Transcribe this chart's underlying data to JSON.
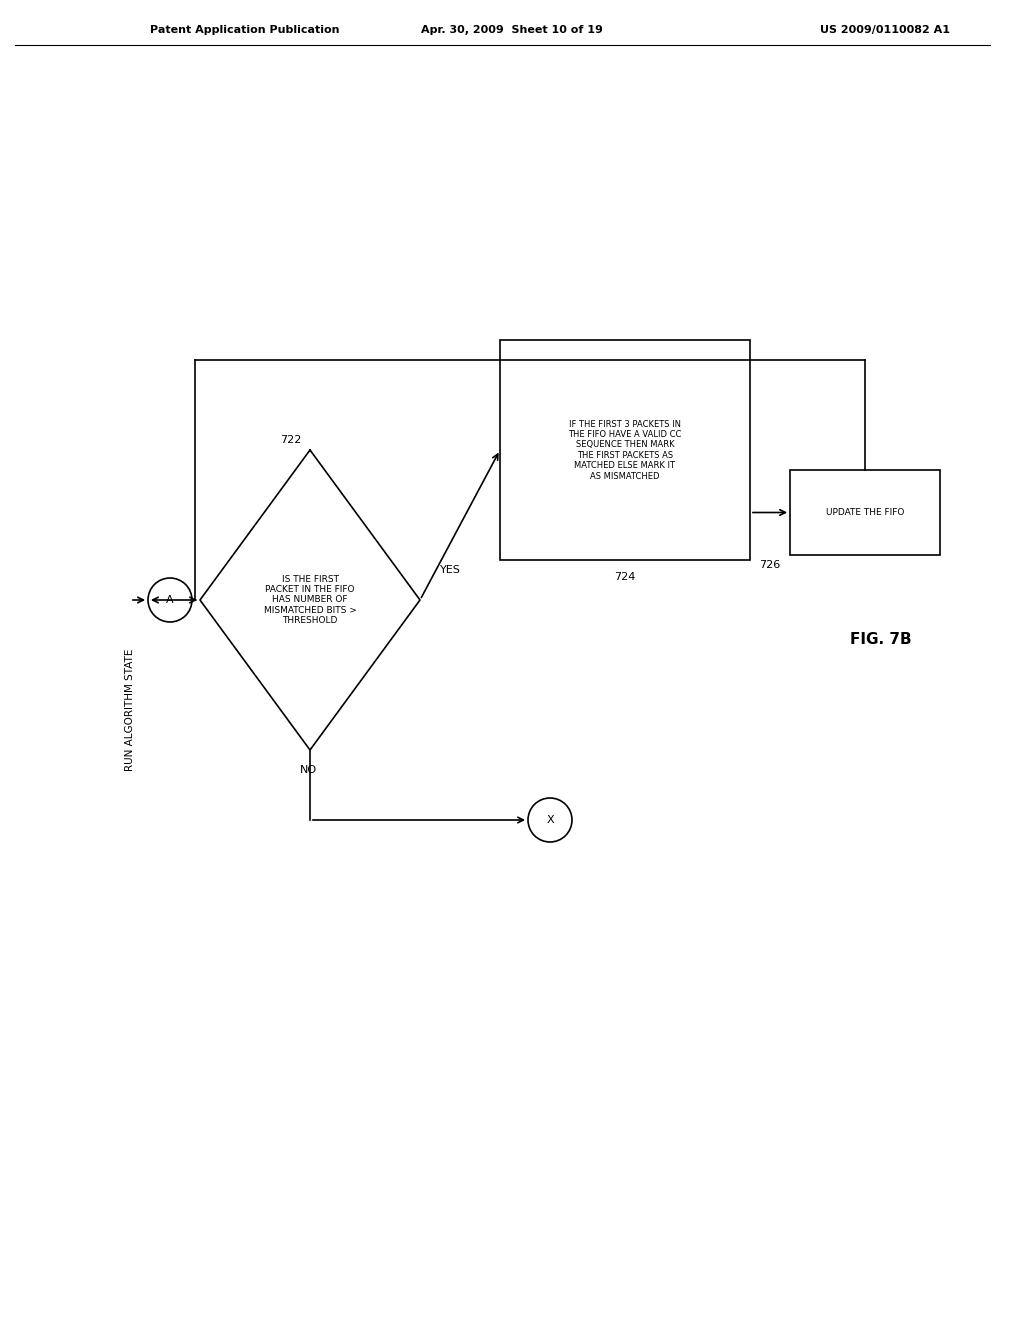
{
  "bg_color": "#ffffff",
  "line_color": "#000000",
  "text_color": "#000000",
  "header_left": "Patent Application Publication",
  "header_mid": "Apr. 30, 2009  Sheet 10 of 19",
  "header_right": "US 2009/0110082 A1",
  "fig_label": "FIG. 7B",
  "diamond_text": "IS THE FIRST\nPACKET IN THE FIFO\nHAS NUMBER OF\nMISMATCHED BITS >\nTHRESHOLD",
  "diamond_label": "722",
  "process_box_text": "IF THE FIRST 3 PACKETS IN\nTHE FIFO HAVE A VALID CC\nSEQUENCE THEN MARK\nTHE FIRST PACKETS AS\nMATCHED ELSE MARK IT\nAS MISMATCHED",
  "process_box_label": "724",
  "update_box_text": "UPDATE THE FIFO",
  "update_box_label": "726",
  "yes_label": "YES",
  "no_label": "NO",
  "run_label": "RUN ALGORITHM STATE",
  "connector_a_label": "A",
  "connector_x_label": "X"
}
